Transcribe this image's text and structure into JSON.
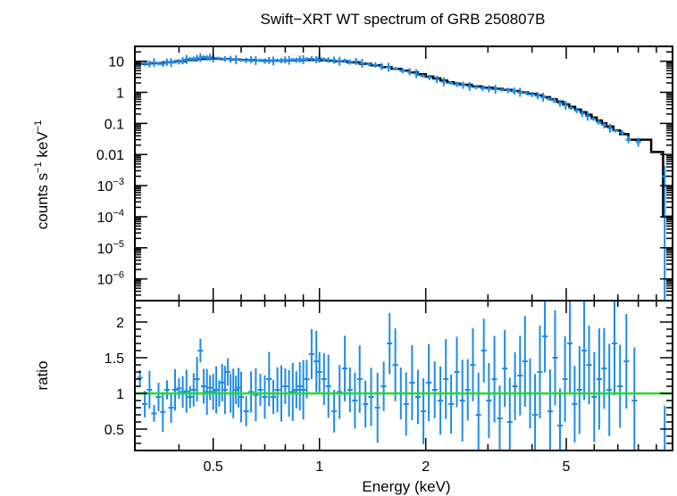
{
  "chart_data": [
    {
      "type": "scatter",
      "title": "Swift−XRT WT spectrum of GRB 250807B",
      "ylabel_base": "counts s",
      "ylabel_exp1": "−1",
      "ylabel_mid": " keV",
      "ylabel_exp2": "−1",
      "xscale": "log",
      "yscale": "log",
      "xlim": [
        0.3,
        10
      ],
      "ylim": [
        2e-07,
        30
      ],
      "ytick_labels": [
        {
          "value": 10,
          "base": "10",
          "exp": ""
        },
        {
          "value": 1,
          "base": "1",
          "exp": ""
        },
        {
          "value": 0.1,
          "base": "0.1",
          "exp": ""
        },
        {
          "value": 0.01,
          "base": "0.01",
          "exp": ""
        },
        {
          "value": 0.001,
          "base": "10",
          "exp": "−3"
        },
        {
          "value": 0.0001,
          "base": "10",
          "exp": "−4"
        },
        {
          "value": 1e-05,
          "base": "10",
          "exp": "−5"
        },
        {
          "value": 1e-06,
          "base": "10",
          "exp": "−6"
        }
      ],
      "data_color": "#1f8ae8",
      "model_color": "#000000",
      "data_points": [
        [
          0.31,
          8.0
        ],
        [
          0.32,
          8.6
        ],
        [
          0.33,
          8.2
        ],
        [
          0.34,
          9.0
        ],
        [
          0.35,
          8.4
        ],
        [
          0.36,
          8.1
        ],
        [
          0.37,
          9.3
        ],
        [
          0.38,
          9.0
        ],
        [
          0.39,
          9.6
        ],
        [
          0.4,
          9.5
        ],
        [
          0.41,
          10.4
        ],
        [
          0.42,
          11.4
        ],
        [
          0.43,
          12.0
        ],
        [
          0.44,
          11.6
        ],
        [
          0.45,
          12.4
        ],
        [
          0.46,
          13.0
        ],
        [
          0.47,
          13.6
        ],
        [
          0.48,
          12.8
        ],
        [
          0.49,
          13.4
        ],
        [
          0.5,
          12.8
        ],
        [
          0.52,
          12.2
        ],
        [
          0.54,
          11.8
        ],
        [
          0.56,
          11.6
        ],
        [
          0.58,
          11.2
        ],
        [
          0.6,
          11.0
        ],
        [
          0.62,
          10.6
        ],
        [
          0.64,
          11.2
        ],
        [
          0.66,
          10.4
        ],
        [
          0.68,
          10.8
        ],
        [
          0.7,
          10.0
        ],
        [
          0.72,
          10.6
        ],
        [
          0.74,
          10.2
        ],
        [
          0.76,
          10.8
        ],
        [
          0.78,
          10.4
        ],
        [
          0.8,
          11.0
        ],
        [
          0.82,
          10.6
        ],
        [
          0.84,
          11.2
        ],
        [
          0.86,
          10.8
        ],
        [
          0.88,
          11.6
        ],
        [
          0.9,
          11.2
        ],
        [
          0.92,
          11.8
        ],
        [
          0.95,
          12.0
        ],
        [
          0.98,
          11.2
        ],
        [
          1.0,
          12.4
        ],
        [
          1.03,
          11.6
        ],
        [
          1.06,
          11.0
        ],
        [
          1.1,
          10.8
        ],
        [
          1.14,
          10.0
        ],
        [
          1.18,
          10.6
        ],
        [
          1.22,
          9.4
        ],
        [
          1.27,
          9.8
        ],
        [
          1.32,
          8.6
        ],
        [
          1.38,
          8.0
        ],
        [
          1.44,
          7.6
        ],
        [
          1.5,
          6.8
        ],
        [
          1.57,
          6.4
        ],
        [
          1.64,
          5.8
        ],
        [
          1.72,
          5.0
        ],
        [
          1.8,
          4.6
        ],
        [
          1.88,
          4.0
        ],
        [
          1.96,
          3.4
        ],
        [
          2.05,
          3.0
        ],
        [
          2.15,
          2.6
        ],
        [
          2.25,
          2.2
        ],
        [
          2.35,
          2.0
        ],
        [
          2.45,
          1.8
        ],
        [
          2.55,
          1.7
        ],
        [
          2.66,
          1.55
        ],
        [
          2.78,
          1.45
        ],
        [
          2.9,
          1.35
        ],
        [
          3.02,
          1.3
        ],
        [
          3.15,
          1.25
        ],
        [
          3.28,
          1.2
        ],
        [
          3.42,
          1.15
        ],
        [
          3.56,
          1.1
        ],
        [
          3.7,
          1.0
        ],
        [
          3.85,
          0.95
        ],
        [
          4.0,
          0.85
        ],
        [
          4.15,
          0.78
        ],
        [
          4.3,
          0.7
        ],
        [
          4.46,
          0.62
        ],
        [
          4.62,
          0.55
        ],
        [
          4.8,
          0.45
        ],
        [
          4.98,
          0.38
        ],
        [
          5.16,
          0.31
        ],
        [
          5.35,
          0.26
        ],
        [
          5.55,
          0.21
        ],
        [
          5.75,
          0.17
        ],
        [
          5.96,
          0.14
        ],
        [
          6.18,
          0.11
        ],
        [
          6.4,
          0.09
        ],
        [
          6.65,
          0.07
        ],
        [
          6.9,
          0.058
        ],
        [
          7.2,
          0.05
        ],
        [
          7.5,
          0.03
        ],
        [
          8.0,
          0.025
        ],
        [
          9.5,
          0.002
        ]
      ],
      "model_points": [
        [
          0.3,
          8.2
        ],
        [
          0.33,
          8.6
        ],
        [
          0.36,
          9.3
        ],
        [
          0.39,
          10.0
        ],
        [
          0.42,
          11.0
        ],
        [
          0.45,
          11.8
        ],
        [
          0.48,
          12.2
        ],
        [
          0.52,
          11.8
        ],
        [
          0.56,
          11.3
        ],
        [
          0.6,
          10.9
        ],
        [
          0.65,
          10.6
        ],
        [
          0.7,
          10.4
        ],
        [
          0.75,
          10.4
        ],
        [
          0.8,
          10.6
        ],
        [
          0.85,
          10.8
        ],
        [
          0.9,
          11.0
        ],
        [
          0.95,
          11.0
        ],
        [
          1.0,
          10.8
        ],
        [
          1.05,
          10.4
        ],
        [
          1.1,
          10.0
        ],
        [
          1.2,
          9.2
        ],
        [
          1.3,
          8.3
        ],
        [
          1.4,
          7.4
        ],
        [
          1.5,
          6.5
        ],
        [
          1.6,
          5.7
        ],
        [
          1.7,
          5.0
        ],
        [
          1.8,
          4.4
        ],
        [
          1.9,
          3.8
        ],
        [
          2.0,
          3.2
        ],
        [
          2.1,
          2.8
        ],
        [
          2.2,
          2.4
        ],
        [
          2.3,
          2.1
        ],
        [
          2.4,
          1.9
        ],
        [
          2.5,
          1.75
        ],
        [
          2.7,
          1.55
        ],
        [
          2.9,
          1.4
        ],
        [
          3.1,
          1.3
        ],
        [
          3.3,
          1.2
        ],
        [
          3.5,
          1.1
        ],
        [
          3.7,
          1.0
        ],
        [
          3.9,
          0.9
        ],
        [
          4.1,
          0.8
        ],
        [
          4.3,
          0.7
        ],
        [
          4.5,
          0.6
        ],
        [
          4.7,
          0.5
        ],
        [
          4.9,
          0.41
        ],
        [
          5.1,
          0.34
        ],
        [
          5.3,
          0.28
        ],
        [
          5.5,
          0.23
        ],
        [
          5.7,
          0.19
        ],
        [
          5.9,
          0.155
        ],
        [
          6.1,
          0.125
        ],
        [
          6.3,
          0.1
        ],
        [
          6.5,
          0.08
        ],
        [
          6.8,
          0.06
        ],
        [
          7.1,
          0.045
        ],
        [
          7.5,
          0.03
        ],
        [
          8.0,
          0.03
        ],
        [
          8.7,
          0.012
        ],
        [
          9.4,
          0.012
        ],
        [
          9.4,
          0.0001
        ],
        [
          10.0,
          0.0001
        ]
      ]
    },
    {
      "type": "scatter",
      "xlabel": "Energy (keV)",
      "ylabel": "ratio",
      "xscale": "log",
      "xlim": [
        0.3,
        10
      ],
      "ylim": [
        0.2,
        2.3
      ],
      "xtick_labels": [
        {
          "value": 0.5,
          "label": "0.5"
        },
        {
          "value": 1,
          "label": "1"
        },
        {
          "value": 2,
          "label": "2"
        },
        {
          "value": 5,
          "label": "5"
        }
      ],
      "ytick_labels": [
        {
          "value": 0.5,
          "label": "0.5"
        },
        {
          "value": 1,
          "label": "1"
        },
        {
          "value": 1.5,
          "label": "1.5"
        },
        {
          "value": 2,
          "label": "2"
        }
      ],
      "reference_line": 1.0,
      "reference_color": "#22dd22",
      "data_color": "#1f8ae8",
      "ratio_points": [
        [
          0.31,
          1.22
        ],
        [
          0.32,
          0.85
        ],
        [
          0.33,
          1.05
        ],
        [
          0.34,
          0.72
        ],
        [
          0.35,
          0.95
        ],
        [
          0.36,
          0.74
        ],
        [
          0.37,
          1.05
        ],
        [
          0.38,
          0.8
        ],
        [
          0.39,
          1.05
        ],
        [
          0.4,
          1.07
        ],
        [
          0.41,
          1.02
        ],
        [
          0.42,
          1.03
        ],
        [
          0.43,
          0.95
        ],
        [
          0.44,
          1.05
        ],
        [
          0.45,
          1.2
        ],
        [
          0.46,
          1.6
        ],
        [
          0.47,
          1.1
        ],
        [
          0.48,
          1.02
        ],
        [
          0.49,
          1.08
        ],
        [
          0.5,
          1.02
        ],
        [
          0.51,
          1.05
        ],
        [
          0.52,
          1.0
        ],
        [
          0.53,
          1.15
        ],
        [
          0.54,
          1.05
        ],
        [
          0.55,
          1.3
        ],
        [
          0.56,
          1.0
        ],
        [
          0.57,
          1.0
        ],
        [
          0.58,
          1.05
        ],
        [
          0.59,
          1.08
        ],
        [
          0.6,
          0.95
        ],
        [
          0.62,
          0.75
        ],
        [
          0.64,
          1.02
        ],
        [
          0.66,
          0.98
        ],
        [
          0.68,
          1.05
        ],
        [
          0.7,
          0.95
        ],
        [
          0.72,
          1.2
        ],
        [
          0.74,
          0.95
        ],
        [
          0.76,
          1.05
        ],
        [
          0.78,
          1.0
        ],
        [
          0.8,
          1.1
        ],
        [
          0.82,
          1.0
        ],
        [
          0.84,
          1.02
        ],
        [
          0.86,
          1.05
        ],
        [
          0.88,
          1.1
        ],
        [
          0.9,
          1.05
        ],
        [
          0.92,
          1.2
        ],
        [
          0.95,
          1.55
        ],
        [
          0.98,
          1.45
        ],
        [
          1.0,
          1.3
        ],
        [
          1.03,
          1.2
        ],
        [
          1.06,
          1.1
        ],
        [
          1.1,
          0.75
        ],
        [
          1.14,
          1.02
        ],
        [
          1.18,
          1.35
        ],
        [
          1.22,
          1.05
        ],
        [
          1.26,
          0.9
        ],
        [
          1.3,
          1.2
        ],
        [
          1.35,
          0.85
        ],
        [
          1.4,
          0.95
        ],
        [
          1.46,
          0.8
        ],
        [
          1.52,
          1.1
        ],
        [
          1.58,
          1.7
        ],
        [
          1.64,
          1.4
        ],
        [
          1.7,
          1.0
        ],
        [
          1.76,
          0.85
        ],
        [
          1.83,
          1.15
        ],
        [
          1.9,
          0.95
        ],
        [
          1.97,
          0.75
        ],
        [
          2.04,
          1.15
        ],
        [
          2.12,
          1.05
        ],
        [
          2.2,
          0.9
        ],
        [
          2.28,
          1.2
        ],
        [
          2.36,
          0.85
        ],
        [
          2.45,
          1.3
        ],
        [
          2.54,
          0.9
        ],
        [
          2.63,
          1.05
        ],
        [
          2.72,
          1.4
        ],
        [
          2.82,
          0.7
        ],
        [
          2.92,
          1.6
        ],
        [
          3.02,
          0.9
        ],
        [
          3.13,
          1.2
        ],
        [
          3.24,
          0.65
        ],
        [
          3.35,
          1.35
        ],
        [
          3.46,
          0.6
        ],
        [
          3.58,
          1.1
        ],
        [
          3.7,
          1.25
        ],
        [
          3.82,
          1.45
        ],
        [
          3.95,
          1.0
        ],
        [
          4.08,
          0.7
        ],
        [
          4.21,
          1.3
        ],
        [
          4.35,
          1.8
        ],
        [
          4.5,
          0.75
        ],
        [
          4.65,
          1.5
        ],
        [
          4.8,
          0.55
        ],
        [
          4.96,
          1.2
        ],
        [
          5.12,
          1.7
        ],
        [
          5.28,
          0.85
        ],
        [
          5.45,
          1.05
        ],
        [
          5.62,
          1.6
        ],
        [
          5.8,
          1.4
        ],
        [
          6.0,
          0.95
        ],
        [
          6.2,
          1.2
        ],
        [
          6.4,
          1.35
        ],
        [
          6.62,
          1.05
        ],
        [
          6.85,
          1.7
        ],
        [
          7.1,
          1.1
        ],
        [
          7.4,
          1.45
        ],
        [
          7.8,
          0.9
        ],
        [
          9.5,
          0.2
        ]
      ]
    }
  ]
}
